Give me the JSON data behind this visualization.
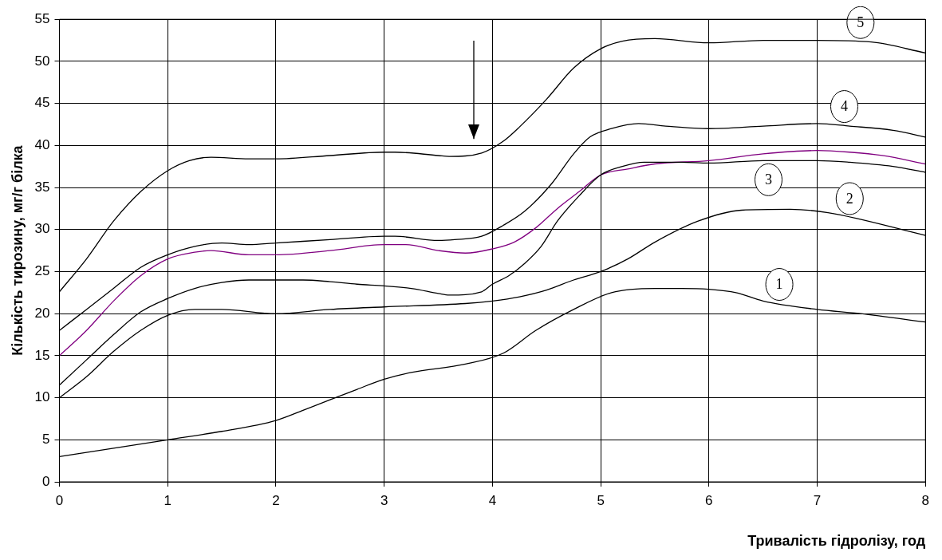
{
  "chart_data": {
    "type": "line",
    "xlabel": "Тривалість гідролізу, год",
    "ylabel": "Кількість тирозину, мг/г білка",
    "xlim": [
      0,
      8
    ],
    "xticks": [
      0,
      1,
      2,
      3,
      4,
      5,
      6,
      7,
      8
    ],
    "ylim": [
      0,
      55
    ],
    "yticks": [
      0,
      5,
      10,
      15,
      20,
      25,
      30,
      35,
      40,
      45,
      50,
      55
    ],
    "grid": true,
    "legend": false,
    "marker": "none",
    "line_style": "solid",
    "series": [
      {
        "name": "1",
        "color": "#000000",
        "x": [
          0,
          1,
          1.5,
          2,
          2.25,
          2.75,
          3,
          3.25,
          3.75,
          4.1,
          4.4,
          4.75,
          5.1,
          5.5,
          5.75,
          6,
          6.25,
          6.5,
          7,
          7.4,
          8
        ],
        "values": [
          3,
          5,
          6,
          7.3,
          8.5,
          11,
          12.2,
          13,
          14,
          15.3,
          18,
          20.5,
          22.5,
          23,
          23,
          22.9,
          22.5,
          21.5,
          20.5,
          20,
          19
        ]
      },
      {
        "name": "2",
        "color": "#000000",
        "x": [
          0,
          0.25,
          0.5,
          0.75,
          1,
          1.25,
          1.5,
          2,
          2.5,
          3,
          3.75,
          4,
          4.25,
          4.5,
          4.75,
          5,
          5.25,
          5.5,
          5.9,
          6.3,
          6.75,
          7.1,
          8
        ],
        "values": [
          10,
          12.5,
          15.5,
          18,
          19.8,
          20.5,
          20.5,
          20,
          20.5,
          20.8,
          21.2,
          21.5,
          22,
          22.8,
          24,
          25,
          26.5,
          28.5,
          31,
          32.3,
          32.4,
          32,
          29.3
        ]
      },
      {
        "name": "3",
        "color": "#000000",
        "x": [
          0,
          0.25,
          0.5,
          0.75,
          1,
          1.25,
          1.5,
          1.75,
          2,
          2.25,
          2.5,
          2.75,
          3,
          3.25,
          3.5,
          3.6,
          3.9,
          4,
          4.15,
          4.3,
          4.45,
          4.6,
          4.8,
          5,
          5.2,
          5.4,
          5.75,
          6,
          6.5,
          7,
          7.3,
          7.7,
          8
        ],
        "values": [
          11.5,
          14.5,
          17.5,
          20.2,
          21.8,
          23,
          23.7,
          24,
          24,
          24,
          23.8,
          23.5,
          23.3,
          23,
          22.4,
          22.2,
          22.6,
          23.5,
          24.5,
          26,
          28,
          31,
          34,
          36.5,
          37.5,
          38,
          38,
          37.9,
          38.2,
          38.2,
          38,
          37.5,
          36.8
        ]
      },
      {
        "color": "#800080",
        "x": [
          0,
          0.25,
          0.5,
          0.75,
          1,
          1.25,
          1.4,
          1.75,
          2,
          2.5,
          3,
          3.2,
          3.5,
          3.75,
          4,
          4.2,
          4.4,
          4.6,
          4.8,
          5,
          5.25,
          5.5,
          6,
          6.5,
          7,
          7.3,
          7.6,
          8
        ],
        "values": [
          15,
          18,
          21.5,
          24.5,
          26.5,
          27.3,
          27.5,
          27,
          27,
          27.5,
          28.2,
          28.2,
          27.5,
          27.2,
          27.7,
          28.5,
          30.2,
          32.5,
          34.5,
          36.5,
          37.2,
          37.8,
          38.2,
          39,
          39.4,
          39.2,
          38.8,
          37.8
        ]
      },
      {
        "name": "4",
        "color": "#000000",
        "x": [
          0,
          0.25,
          0.5,
          0.75,
          1,
          1.25,
          1.5,
          1.75,
          2,
          2.5,
          3,
          3.1,
          3.5,
          3.65,
          3.9,
          4.1,
          4.3,
          4.55,
          4.75,
          4.9,
          5.1,
          5.35,
          5.6,
          6,
          6.5,
          7,
          7.3,
          7.7,
          8
        ],
        "values": [
          18,
          20.5,
          23,
          25.5,
          27,
          28,
          28.4,
          28.2,
          28.4,
          28.8,
          29.2,
          29.2,
          28.7,
          28.8,
          29.2,
          30.5,
          32.2,
          35.5,
          39,
          41,
          42,
          42.6,
          42.3,
          42,
          42.3,
          42.6,
          42.3,
          41.8,
          41
        ]
      },
      {
        "name": "5",
        "color": "#000000",
        "x": [
          0,
          0.25,
          0.5,
          0.75,
          1,
          1.2,
          1.4,
          1.75,
          2,
          2.5,
          3,
          3.1,
          3.5,
          3.6,
          3.9,
          4.1,
          4.25,
          4.5,
          4.75,
          5,
          5.2,
          5.5,
          6,
          6.5,
          7,
          7.5,
          8
        ],
        "values": [
          22.6,
          26.5,
          31,
          34.5,
          37,
          38.2,
          38.6,
          38.4,
          38.4,
          38.8,
          39.2,
          39.2,
          38.8,
          38.7,
          39.1,
          40.5,
          42.2,
          45.5,
          49.2,
          51.5,
          52.4,
          52.7,
          52.2,
          52.5,
          52.5,
          52.3,
          51
        ]
      }
    ]
  }
}
